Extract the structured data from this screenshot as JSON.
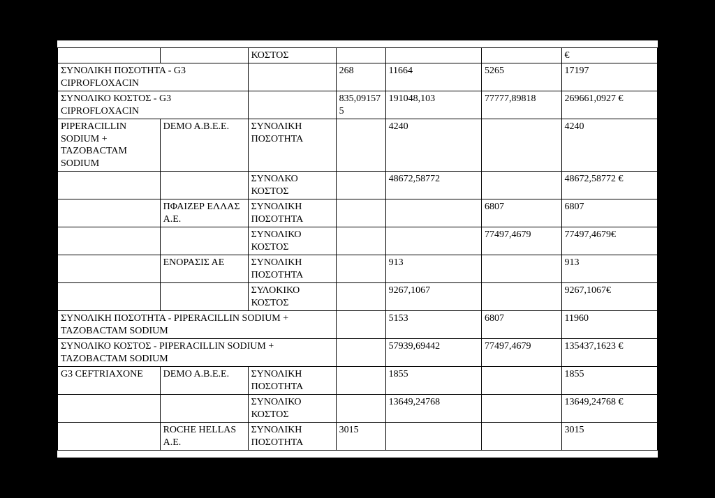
{
  "rows": [
    {
      "a": "",
      "b": "",
      "c": "ΚΟΣΤΟΣ",
      "d": "",
      "e": "",
      "f": "",
      "g": "€"
    },
    {
      "a": "ΣΥΝΟΛΙΚΗ ΠΟΣΟΤΗΤΑ - G3 CIPROFLOXACIN",
      "ab": true,
      "c": "",
      "d": "268",
      "e": "11664",
      "f": "5265",
      "g": "17197"
    },
    {
      "a": "ΣΥΝΟΛΙΚΟ ΚΟΣΤΟΣ - G3 CIPROFLOXACIN",
      "ab": true,
      "c": "",
      "d": "835,091575",
      "e": "191048,103",
      "f": "77777,89818",
      "g": "269661,0927 €"
    },
    {
      "a": "PIPERACILLIN SODIUM + TAZOBACTAM SODIUM",
      "b": "DEMO A.B.E.E.",
      "c": "ΣΥΝΟΛΙΚΗ ΠΟΣΟΤΗΤΑ",
      "d": "",
      "e": "4240",
      "f": "",
      "g": "4240"
    },
    {
      "a": "",
      "b": "",
      "c": "ΣΥΝΟΛΚΟ ΚΟΣΤΟΣ",
      "d": "",
      "e": "48672,58772",
      "f": "",
      "g": "48672,58772 €"
    },
    {
      "a": "",
      "b": "ΠΦΑΙΖΕΡ ΕΛΛΑΣ Α.Ε.",
      "c": "ΣΥΝΟΛΙΚΗ ΠΟΣΟΤΗΤΑ",
      "d": "",
      "e": "",
      "f": "6807",
      "g": "6807"
    },
    {
      "a": "",
      "b": "",
      "c": "ΣΥΝΟΛΙΚΟ ΚΟΣΤΟΣ",
      "d": "",
      "e": "",
      "f": "77497,4679",
      "g": "77497,4679€"
    },
    {
      "a": "",
      "b": "ΕΝΟΡΑΣΙΣ ΑΕ",
      "c": "ΣΥΝΟΛΙΚΗ ΠΟΣΟΤΗΤΑ",
      "d": "",
      "e": "913",
      "f": "",
      "g": "913"
    },
    {
      "a": "",
      "b": "",
      "c": "ΣΥΛΟΚΙΚΟ ΚΟΣΤΟΣ",
      "d": "",
      "e": "9267,1067",
      "f": "",
      "g": "9267,1067€"
    },
    {
      "a": "ΣΥΝΟΛΙΚΗ ΠΟΣΟΤΗΤΑ - PIPERACILLIN SODIUM + TAZOBACTAM SODIUM",
      "abc": true,
      "d": "",
      "e": "5153",
      "f": "6807",
      "g": "11960"
    },
    {
      "a": "ΣΥΝΟΛΙΚΟ ΚΟΣΤΟΣ - PIPERACILLIN SODIUM + TAZOBACTAM SODIUM",
      "abc": true,
      "d": "",
      "e": "57939,69442",
      "f": "77497,4679",
      "g": "135437,1623 €"
    },
    {
      "a": "G3 CEFTRIAXONE",
      "b": "DEMO A.B.E.E.",
      "c": "ΣΥΝΟΛΙΚΗ ΠΟΣΟΤΗΤΑ",
      "d": "",
      "e": "1855",
      "f": "",
      "g": "1855"
    },
    {
      "a": "",
      "b": "",
      "c": "ΣΥΝΟΛΙΚΟ ΚΟΣΤΟΣ",
      "d": "",
      "e": "13649,24768",
      "f": "",
      "g": "13649,24768 €"
    },
    {
      "a": "",
      "b": "ROCHE HELLAS A.E.",
      "c": "ΣΥΝΟΛΙΚΗ ΠΟΣΟΤΗΤΑ",
      "d": "3015",
      "e": "",
      "f": "",
      "g": "3015"
    }
  ]
}
